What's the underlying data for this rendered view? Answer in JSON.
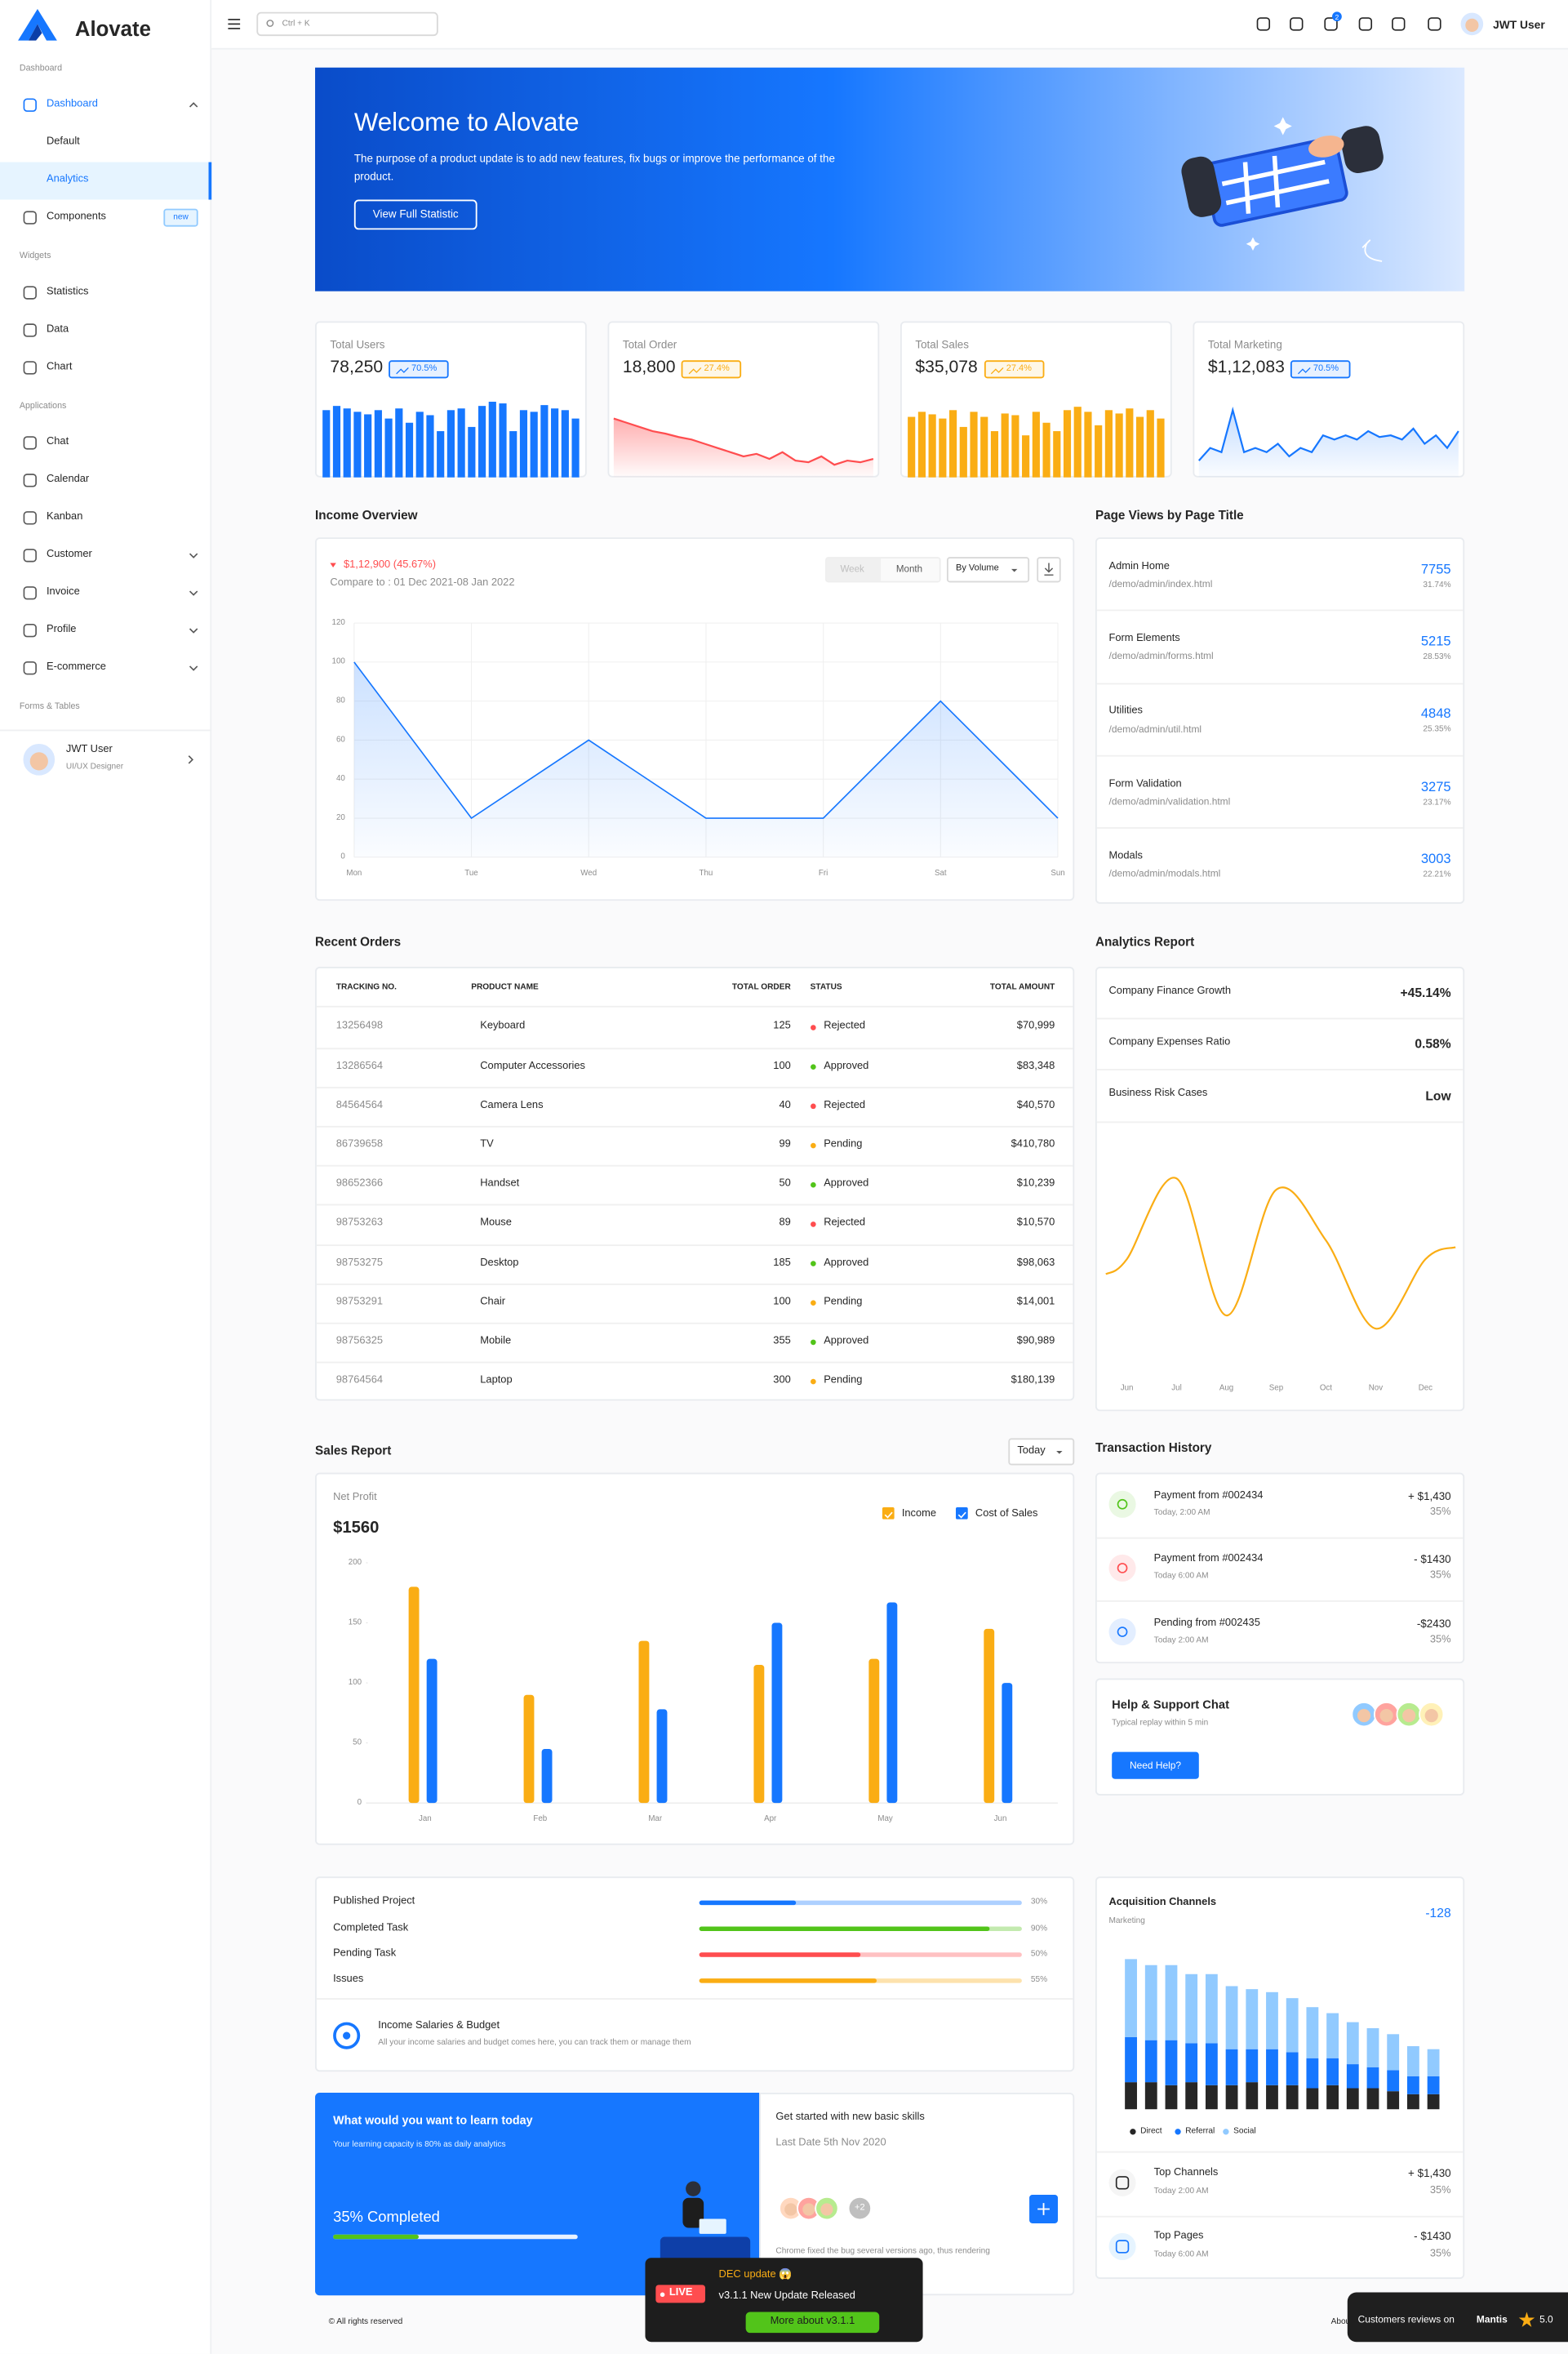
{
  "header": {
    "logo": "Alovate",
    "search": "Ctrl + K",
    "notifications": "2",
    "user": "JWT User"
  },
  "sidebar": {
    "sections": [
      {
        "title": "Dashboard",
        "items": [
          {
            "label": "Dashboard",
            "active": true,
            "children": [
              "Default",
              "Analytics"
            ],
            "selected_child": 1
          },
          {
            "label": "Components",
            "badge": "new"
          }
        ]
      },
      {
        "title": "Widgets",
        "items": [
          {
            "label": "Statistics"
          },
          {
            "label": "Data"
          },
          {
            "label": "Chart"
          }
        ]
      },
      {
        "title": "Applications",
        "items": [
          {
            "label": "Chat"
          },
          {
            "label": "Calendar"
          },
          {
            "label": "Kanban"
          },
          {
            "label": "Customer",
            "chevron": true
          },
          {
            "label": "Invoice",
            "chevron": true
          },
          {
            "label": "Profile",
            "chevron": true
          },
          {
            "label": "E-commerce",
            "chevron": true
          }
        ]
      },
      {
        "title": "Forms & Tables"
      }
    ],
    "user": {
      "name": "JWT User",
      "role": "UI/UX Designer"
    }
  },
  "banner": {
    "title": "Welcome to Alovate",
    "text": "The purpose of a product update is to add new features, fix bugs or improve the performance of the product.",
    "button": "View Full Statistic"
  },
  "stats": [
    {
      "title": "Total Users",
      "value": "78,250",
      "badge": "70.5%",
      "badge_color": "#1677ff"
    },
    {
      "title": "Total Order",
      "value": "18,800",
      "badge": "27.4%",
      "badge_color": "#faad14"
    },
    {
      "title": "Total Sales",
      "value": "$35,078",
      "badge": "27.4%",
      "badge_color": "#faad14"
    },
    {
      "title": "Total Marketing",
      "value": "$1,12,083",
      "badge": "70.5%",
      "badge_color": "#1677ff"
    }
  ],
  "income": {
    "title": "Income Overview",
    "amount": "$1,12,900 (45.67%)",
    "compare": "Compare to : 01 Dec 2021-08 Jan 2022",
    "tabs": [
      "Week",
      "Month"
    ],
    "select": "By Volume"
  },
  "page_views": {
    "title": "Page Views by Page Title",
    "rows": [
      {
        "title": "Admin Home",
        "path": "/demo/admin/index.html",
        "value": "7755",
        "percent": "31.74%"
      },
      {
        "title": "Form Elements",
        "path": "/demo/admin/forms.html",
        "value": "5215",
        "percent": "28.53%"
      },
      {
        "title": "Utilities",
        "path": "/demo/admin/util.html",
        "value": "4848",
        "percent": "25.35%"
      },
      {
        "title": "Form Validation",
        "path": "/demo/admin/validation.html",
        "value": "3275",
        "percent": "23.17%"
      },
      {
        "title": "Modals",
        "path": "/demo/admin/modals.html",
        "value": "3003",
        "percent": "22.21%"
      }
    ]
  },
  "orders": {
    "title": "Recent Orders",
    "columns": [
      "TRACKING NO.",
      "PRODUCT NAME",
      "TOTAL ORDER",
      "STATUS",
      "TOTAL AMOUNT"
    ],
    "status_colors": {
      "Rejected": "#ff4d4f",
      "Approved": "#52c41a",
      "Pending": "#faad14"
    },
    "rows": [
      [
        "13256498",
        "Keyboard",
        "125",
        "Rejected",
        "$70,999"
      ],
      [
        "13286564",
        "Computer Accessories",
        "100",
        "Approved",
        "$83,348"
      ],
      [
        "84564564",
        "Camera Lens",
        "40",
        "Rejected",
        "$40,570"
      ],
      [
        "86739658",
        "TV",
        "99",
        "Pending",
        "$410,780"
      ],
      [
        "98652366",
        "Handset",
        "50",
        "Approved",
        "$10,239"
      ],
      [
        "98753263",
        "Mouse",
        "89",
        "Rejected",
        "$10,570"
      ],
      [
        "98753275",
        "Desktop",
        "185",
        "Approved",
        "$98,063"
      ],
      [
        "98753291",
        "Chair",
        "100",
        "Pending",
        "$14,001"
      ],
      [
        "98756325",
        "Mobile",
        "355",
        "Approved",
        "$90,989"
      ],
      [
        "98764564",
        "Laptop",
        "300",
        "Pending",
        "$180,139"
      ]
    ]
  },
  "analytics": {
    "title": "Analytics Report",
    "rows": [
      {
        "label": "Company Finance Growth",
        "value": "+45.14%"
      },
      {
        "label": "Company Expenses Ratio",
        "value": "0.58%"
      },
      {
        "label": "Business Risk Cases",
        "value": "Low"
      }
    ]
  },
  "sales": {
    "title": "Sales Report",
    "select": "Today",
    "label": "Net Profit",
    "value": "$1560"
  },
  "transactions": {
    "title": "Transaction History",
    "items": [
      {
        "title": "Payment from #002434",
        "time": "Today, 2:00 AM",
        "amount": "+ $1,430",
        "percent": "35%",
        "color": "#52c41a"
      },
      {
        "title": "Payment from #002434",
        "time": "Today 6:00 AM",
        "amount": "- $1430",
        "percent": "35%",
        "color": "#ff4d4f"
      },
      {
        "title": "Pending from #002435",
        "time": "Today 2:00 AM",
        "amount": "-$2430",
        "percent": "35%",
        "color": "#1677ff"
      }
    ]
  },
  "help": {
    "title": "Help & Support Chat",
    "subtitle": "Typical replay within 5 min",
    "button": "Need Help?"
  },
  "budget": {
    "title": "Income Salaries & Budget",
    "text": "All your income salaries and budget comes here, you can track them or manage them"
  },
  "acquisition": {
    "title": "Acquisition Channels",
    "subtitle": "Marketing",
    "value": "-128",
    "items": [
      {
        "title": "Top Channels",
        "time": "Today 2:00 AM",
        "amount": "+ $1,430",
        "percent": "35%"
      },
      {
        "title": "Top Pages",
        "time": "Today 6:00 AM",
        "amount": "- $1430",
        "percent": "35%"
      }
    ]
  },
  "learn": {
    "title": "What would you want to learn today",
    "text": "Your learning capacity is 80% as daily analytics",
    "completed": "35% Completed",
    "progress": 35,
    "skills_title": "Get started with new basic skills",
    "date": "Last Date 5th Nov 2020",
    "more": "+2",
    "note": "Chrome fixed the bug several versions ago, thus rendering"
  },
  "footer": {
    "copyright": "© All rights reserved",
    "about": "About"
  },
  "popup": {
    "title": "DEC update 😱",
    "live": "LIVE",
    "text": "v3.1.1 New Update Released",
    "button": "More about v3.1.1"
  },
  "reviews": {
    "text": "Customers reviews on",
    "brand": "Mantis",
    "score": "5.0"
  },
  "chart_data": [
    {
      "type": "bar",
      "color": "#1677ff",
      "ylim": [
        0,
        100
      ],
      "values": [
        80,
        85,
        82,
        78,
        75,
        80,
        70,
        82,
        65,
        78,
        74,
        55,
        80,
        82,
        60,
        85,
        90,
        88,
        55,
        80,
        78,
        86,
        82,
        80,
        70
      ]
    },
    {
      "type": "area",
      "color": "#ff4d4f",
      "ylim": [
        0,
        100
      ],
      "values": [
        70,
        65,
        60,
        55,
        52,
        48,
        45,
        40,
        35,
        30,
        25,
        28,
        22,
        30,
        20,
        18,
        25,
        15,
        20,
        18,
        22
      ]
    },
    {
      "type": "bar",
      "color": "#faad14",
      "ylim": [
        0,
        100
      ],
      "values": [
        72,
        78,
        75,
        70,
        80,
        60,
        78,
        72,
        55,
        76,
        74,
        50,
        78,
        65,
        55,
        80,
        84,
        78,
        62,
        80,
        76,
        82,
        72,
        80,
        70
      ]
    },
    {
      "type": "line",
      "color": "#1677ff",
      "ylim": [
        0,
        100
      ],
      "values": [
        20,
        35,
        30,
        80,
        30,
        35,
        30,
        40,
        25,
        35,
        30,
        50,
        45,
        50,
        45,
        55,
        48,
        50,
        45,
        58,
        40,
        50,
        35,
        55
      ]
    },
    {
      "type": "line",
      "color": "#1677ff",
      "categories": [
        "Mon",
        "Tue",
        "Wed",
        "Thu",
        "Fri",
        "Sat",
        "Sun"
      ],
      "values": [
        100,
        20,
        60,
        20,
        20,
        80,
        20
      ],
      "ylim": [
        0,
        120
      ],
      "yticks": [
        0,
        20,
        40,
        60,
        80,
        100,
        120
      ],
      "grid": true
    },
    {
      "type": "spline",
      "color": "#faad14",
      "categories": [
        "Jun",
        "Jul",
        "Aug",
        "Sep",
        "Oct",
        "Nov",
        "Dec"
      ],
      "values": [
        45,
        88,
        15,
        82,
        55,
        8,
        45
      ],
      "ylim": [
        0,
        100
      ]
    },
    {
      "type": "grouped_bar",
      "categories": [
        "Jan",
        "Feb",
        "Mar",
        "Apr",
        "May",
        "Jun"
      ],
      "series": [
        {
          "name": "Income",
          "color": "#faad14",
          "values": [
            180,
            90,
            135,
            115,
            120,
            145
          ]
        },
        {
          "name": "Cost of Sales",
          "color": "#1677ff",
          "values": [
            120,
            45,
            78,
            150,
            167,
            100
          ]
        }
      ],
      "ylim": [
        0,
        200
      ],
      "yticks": [
        0,
        50,
        100,
        150,
        200
      ]
    },
    {
      "type": "progress",
      "categories": [
        "Published Project",
        "Completed Task",
        "Pending Task",
        "Issues"
      ],
      "values": [
        30,
        90,
        50,
        55
      ],
      "value_labels": [
        "30%",
        "90%",
        "50%",
        "55%"
      ],
      "colors": [
        "#1677ff",
        "#52c41a",
        "#ff4d4f",
        "#faad14"
      ],
      "xlim": [
        0,
        100
      ]
    },
    {
      "type": "stacked_bar",
      "ylim": [
        0,
        100
      ],
      "series": [
        {
          "name": "Direct",
          "color": "#262626",
          "values": [
            18,
            18,
            16,
            18,
            16,
            16,
            18,
            16,
            16,
            14,
            16,
            14,
            14,
            12,
            10,
            10
          ]
        },
        {
          "name": "Referral",
          "color": "#1677ff",
          "values": [
            30,
            28,
            30,
            26,
            28,
            24,
            22,
            24,
            22,
            20,
            18,
            16,
            14,
            14,
            12,
            12
          ]
        },
        {
          "name": "Social",
          "color": "#91caff",
          "values": [
            52,
            50,
            50,
            46,
            46,
            42,
            40,
            38,
            36,
            34,
            30,
            28,
            26,
            24,
            20,
            18
          ]
        }
      ]
    }
  ]
}
